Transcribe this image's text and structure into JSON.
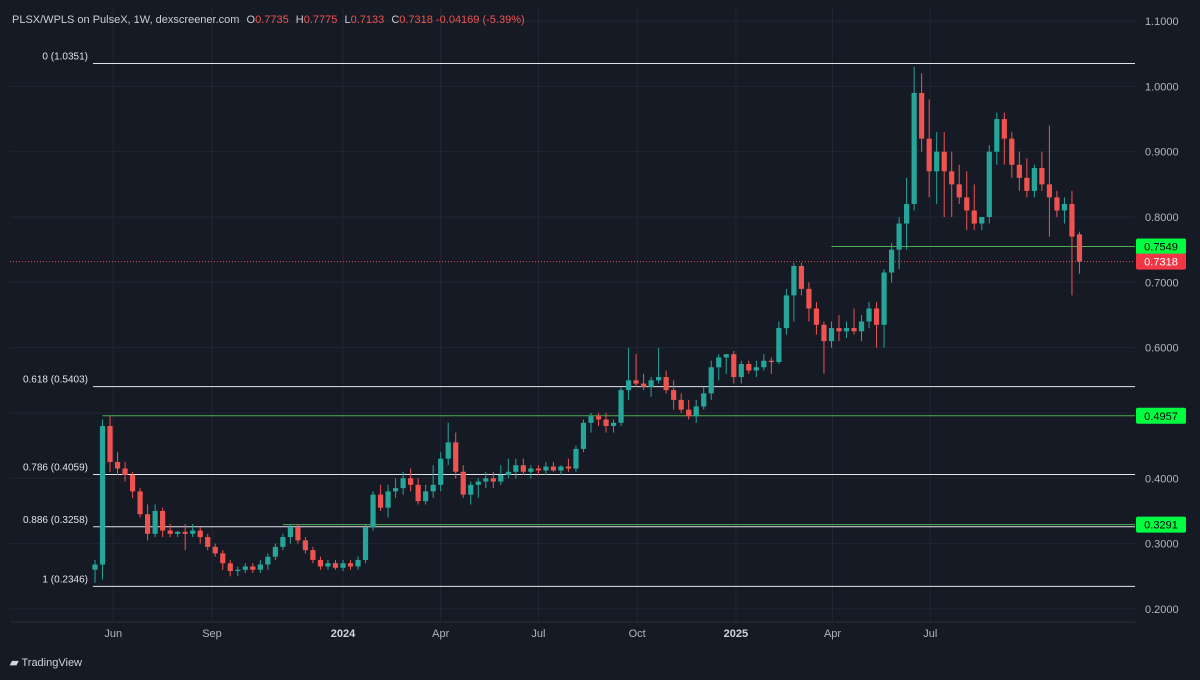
{
  "header": {
    "symbol": "PLSX/WPLS on PulseX, 1W, dexscreener.com",
    "o_label": "O",
    "o": "0.7735",
    "h_label": "H",
    "h": "0.7775",
    "l_label": "L",
    "l": "0.7133",
    "c_label": "C",
    "c": "0.7318",
    "change": "-0.04169 (-5.39%)"
  },
  "brand": {
    "name": "TradingView",
    "logo_icon": "tradingview-logo-icon"
  },
  "colors": {
    "bg": "#161a25",
    "up": "#26a69a",
    "down": "#ef5350",
    "grid": "#222632",
    "text": "#b2b5be",
    "fib": "#e0e3eb",
    "level": "#4caf50",
    "level_label": "#00ff41",
    "price_label": "#f23645"
  },
  "chart_data": {
    "type": "candlestick",
    "ylim": [
      0.18,
      1.12
    ],
    "yticks": [
      0.2,
      0.3,
      0.4,
      0.5,
      0.6,
      0.7,
      0.8,
      0.9,
      1.0,
      1.1
    ],
    "ytick_labels": [
      "0.2000",
      "0.3000",
      "0.4000",
      "0.5000",
      "0.6000",
      "0.7000",
      "0.8000",
      "0.9000",
      "1.0000",
      "1.1000"
    ],
    "xticks": [
      {
        "label": "Jun",
        "date": "2023-06-01",
        "bold": false
      },
      {
        "label": "Sep",
        "date": "2023-09-01",
        "bold": false
      },
      {
        "label": "2024",
        "date": "2024-01-01",
        "bold": true
      },
      {
        "label": "Apr",
        "date": "2024-04-01",
        "bold": false
      },
      {
        "label": "Jul",
        "date": "2024-07-01",
        "bold": false
      },
      {
        "label": "Oct",
        "date": "2024-10-01",
        "bold": false
      },
      {
        "label": "2025",
        "date": "2025-01-01",
        "bold": true
      },
      {
        "label": "Apr",
        "date": "2025-04-01",
        "bold": false
      },
      {
        "label": "Jul",
        "date": "2025-07-01",
        "bold": false
      }
    ],
    "first_candle_date": "2023-05-15",
    "interval": "1W",
    "current_price": 0.7318,
    "fib_levels": [
      {
        "label": "0 (1.0351)",
        "value": 1.0351
      },
      {
        "label": "0.618 (0.5403)",
        "value": 0.5403
      },
      {
        "label": "0.786 (0.4059)",
        "value": 0.4059
      },
      {
        "label": "0.886 (0.3258)",
        "value": 0.3258
      },
      {
        "label": "1 (0.2346)",
        "value": 0.2346
      }
    ],
    "horizontal_levels": [
      {
        "label": "0.7549",
        "value": 0.7549,
        "from": "2025-03-31"
      },
      {
        "label": "0.4957",
        "value": 0.4957,
        "from": "2023-05-22"
      },
      {
        "label": "0.3291",
        "value": 0.3291,
        "from": "2023-11-06"
      }
    ],
    "candles": [
      [
        0.26,
        0.275,
        0.24,
        0.268
      ],
      [
        0.268,
        0.49,
        0.245,
        0.48
      ],
      [
        0.48,
        0.495,
        0.41,
        0.425
      ],
      [
        0.425,
        0.44,
        0.405,
        0.415
      ],
      [
        0.415,
        0.425,
        0.395,
        0.405
      ],
      [
        0.405,
        0.41,
        0.37,
        0.38
      ],
      [
        0.38,
        0.385,
        0.34,
        0.345
      ],
      [
        0.345,
        0.36,
        0.305,
        0.315
      ],
      [
        0.315,
        0.36,
        0.31,
        0.35
      ],
      [
        0.35,
        0.355,
        0.31,
        0.32
      ],
      [
        0.32,
        0.33,
        0.31,
        0.315
      ],
      [
        0.315,
        0.32,
        0.31,
        0.318
      ],
      [
        0.318,
        0.33,
        0.29,
        0.315
      ],
      [
        0.315,
        0.33,
        0.31,
        0.32
      ],
      [
        0.32,
        0.325,
        0.3,
        0.31
      ],
      [
        0.31,
        0.315,
        0.29,
        0.295
      ],
      [
        0.295,
        0.3,
        0.28,
        0.285
      ],
      [
        0.285,
        0.29,
        0.26,
        0.27
      ],
      [
        0.27,
        0.275,
        0.25,
        0.258
      ],
      [
        0.258,
        0.265,
        0.25,
        0.26
      ],
      [
        0.26,
        0.27,
        0.255,
        0.265
      ],
      [
        0.265,
        0.27,
        0.255,
        0.26
      ],
      [
        0.26,
        0.275,
        0.255,
        0.268
      ],
      [
        0.268,
        0.285,
        0.26,
        0.28
      ],
      [
        0.28,
        0.3,
        0.275,
        0.295
      ],
      [
        0.295,
        0.315,
        0.29,
        0.31
      ],
      [
        0.31,
        0.33,
        0.3,
        0.325
      ],
      [
        0.325,
        0.33,
        0.3,
        0.305
      ],
      [
        0.305,
        0.31,
        0.285,
        0.29
      ],
      [
        0.29,
        0.295,
        0.27,
        0.275
      ],
      [
        0.275,
        0.28,
        0.26,
        0.265
      ],
      [
        0.265,
        0.275,
        0.26,
        0.27
      ],
      [
        0.27,
        0.275,
        0.26,
        0.263
      ],
      [
        0.263,
        0.275,
        0.258,
        0.27
      ],
      [
        0.27,
        0.275,
        0.26,
        0.265
      ],
      [
        0.265,
        0.28,
        0.26,
        0.275
      ],
      [
        0.275,
        0.33,
        0.27,
        0.325
      ],
      [
        0.325,
        0.38,
        0.32,
        0.375
      ],
      [
        0.375,
        0.39,
        0.35,
        0.355
      ],
      [
        0.355,
        0.39,
        0.34,
        0.38
      ],
      [
        0.38,
        0.4,
        0.37,
        0.385
      ],
      [
        0.385,
        0.41,
        0.375,
        0.4
      ],
      [
        0.4,
        0.415,
        0.38,
        0.39
      ],
      [
        0.39,
        0.4,
        0.36,
        0.365
      ],
      [
        0.365,
        0.39,
        0.36,
        0.38
      ],
      [
        0.38,
        0.42,
        0.37,
        0.39
      ],
      [
        0.39,
        0.44,
        0.38,
        0.43
      ],
      [
        0.43,
        0.485,
        0.42,
        0.455
      ],
      [
        0.455,
        0.47,
        0.4,
        0.41
      ],
      [
        0.41,
        0.42,
        0.37,
        0.375
      ],
      [
        0.375,
        0.395,
        0.36,
        0.39
      ],
      [
        0.39,
        0.4,
        0.37,
        0.395
      ],
      [
        0.395,
        0.41,
        0.385,
        0.4
      ],
      [
        0.4,
        0.41,
        0.385,
        0.395
      ],
      [
        0.395,
        0.42,
        0.39,
        0.405
      ],
      [
        0.405,
        0.43,
        0.4,
        0.41
      ],
      [
        0.41,
        0.43,
        0.4,
        0.42
      ],
      [
        0.42,
        0.43,
        0.405,
        0.41
      ],
      [
        0.41,
        0.42,
        0.4,
        0.415
      ],
      [
        0.415,
        0.42,
        0.405,
        0.412
      ],
      [
        0.412,
        0.425,
        0.405,
        0.418
      ],
      [
        0.418,
        0.425,
        0.41,
        0.412
      ],
      [
        0.412,
        0.42,
        0.405,
        0.418
      ],
      [
        0.418,
        0.43,
        0.41,
        0.415
      ],
      [
        0.415,
        0.45,
        0.41,
        0.445
      ],
      [
        0.445,
        0.49,
        0.44,
        0.485
      ],
      [
        0.485,
        0.5,
        0.47,
        0.495
      ],
      [
        0.495,
        0.5,
        0.48,
        0.49
      ],
      [
        0.49,
        0.5,
        0.47,
        0.48
      ],
      [
        0.48,
        0.49,
        0.47,
        0.485
      ],
      [
        0.485,
        0.54,
        0.48,
        0.535
      ],
      [
        0.535,
        0.6,
        0.52,
        0.55
      ],
      [
        0.55,
        0.59,
        0.54,
        0.545
      ],
      [
        0.545,
        0.56,
        0.535,
        0.54
      ],
      [
        0.54,
        0.555,
        0.525,
        0.55
      ],
      [
        0.55,
        0.6,
        0.545,
        0.555
      ],
      [
        0.555,
        0.565,
        0.53,
        0.535
      ],
      [
        0.535,
        0.55,
        0.505,
        0.52
      ],
      [
        0.52,
        0.53,
        0.5,
        0.505
      ],
      [
        0.505,
        0.52,
        0.49,
        0.495
      ],
      [
        0.495,
        0.52,
        0.485,
        0.51
      ],
      [
        0.51,
        0.54,
        0.505,
        0.53
      ],
      [
        0.53,
        0.58,
        0.52,
        0.57
      ],
      [
        0.57,
        0.59,
        0.55,
        0.585
      ],
      [
        0.585,
        0.59,
        0.56,
        0.59
      ],
      [
        0.59,
        0.595,
        0.545,
        0.555
      ],
      [
        0.555,
        0.58,
        0.545,
        0.575
      ],
      [
        0.575,
        0.58,
        0.56,
        0.565
      ],
      [
        0.565,
        0.58,
        0.555,
        0.57
      ],
      [
        0.57,
        0.59,
        0.565,
        0.58
      ],
      [
        0.58,
        0.585,
        0.56,
        0.578
      ],
      [
        0.578,
        0.64,
        0.575,
        0.63
      ],
      [
        0.63,
        0.69,
        0.62,
        0.68
      ],
      [
        0.68,
        0.73,
        0.64,
        0.725
      ],
      [
        0.725,
        0.73,
        0.68,
        0.69
      ],
      [
        0.69,
        0.7,
        0.64,
        0.66
      ],
      [
        0.66,
        0.67,
        0.62,
        0.635
      ],
      [
        0.635,
        0.64,
        0.56,
        0.61
      ],
      [
        0.61,
        0.64,
        0.6,
        0.63
      ],
      [
        0.63,
        0.65,
        0.61,
        0.625
      ],
      [
        0.625,
        0.64,
        0.615,
        0.63
      ],
      [
        0.63,
        0.66,
        0.62,
        0.625
      ],
      [
        0.625,
        0.65,
        0.61,
        0.64
      ],
      [
        0.64,
        0.67,
        0.63,
        0.66
      ],
      [
        0.66,
        0.67,
        0.6,
        0.635
      ],
      [
        0.635,
        0.72,
        0.6,
        0.715
      ],
      [
        0.715,
        0.76,
        0.7,
        0.75
      ],
      [
        0.75,
        0.8,
        0.72,
        0.79
      ],
      [
        0.79,
        0.86,
        0.75,
        0.82
      ],
      [
        0.82,
        1.03,
        0.81,
        0.99
      ],
      [
        0.99,
        1.02,
        0.9,
        0.92
      ],
      [
        0.92,
        0.98,
        0.83,
        0.87
      ],
      [
        0.87,
        0.93,
        0.82,
        0.9
      ],
      [
        0.9,
        0.93,
        0.8,
        0.87
      ],
      [
        0.87,
        0.9,
        0.8,
        0.85
      ],
      [
        0.85,
        0.88,
        0.82,
        0.83
      ],
      [
        0.83,
        0.87,
        0.78,
        0.81
      ],
      [
        0.81,
        0.85,
        0.78,
        0.79
      ],
      [
        0.79,
        0.8,
        0.78,
        0.8
      ],
      [
        0.8,
        0.91,
        0.79,
        0.9
      ],
      [
        0.9,
        0.96,
        0.88,
        0.95
      ],
      [
        0.95,
        0.96,
        0.88,
        0.92
      ],
      [
        0.92,
        0.93,
        0.86,
        0.88
      ],
      [
        0.88,
        0.9,
        0.84,
        0.86
      ],
      [
        0.86,
        0.89,
        0.83,
        0.84
      ],
      [
        0.84,
        0.88,
        0.83,
        0.875
      ],
      [
        0.875,
        0.9,
        0.84,
        0.85
      ],
      [
        0.85,
        0.94,
        0.77,
        0.83
      ],
      [
        0.83,
        0.84,
        0.8,
        0.81
      ],
      [
        0.81,
        0.83,
        0.79,
        0.82
      ],
      [
        0.82,
        0.84,
        0.68,
        0.77
      ],
      [
        0.7735,
        0.7775,
        0.7133,
        0.7318
      ]
    ]
  },
  "price_labels": [
    {
      "label": "0.7549",
      "kind": "level"
    },
    {
      "label": "0.7318",
      "kind": "current"
    },
    {
      "label": "0.4957",
      "kind": "level"
    },
    {
      "label": "0.3291",
      "kind": "level"
    }
  ]
}
